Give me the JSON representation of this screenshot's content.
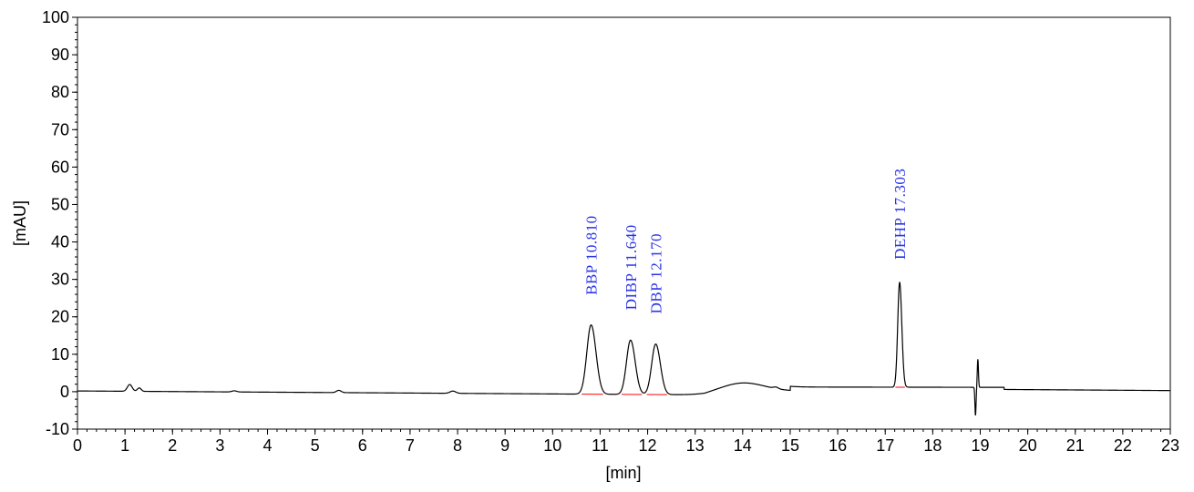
{
  "chart_data": {
    "type": "line",
    "xlabel": "[min]",
    "ylabel": "[mAU]",
    "xlim": [
      0,
      23
    ],
    "ylim": [
      -10,
      100
    ],
    "x_ticks": [
      0,
      1,
      2,
      3,
      4,
      5,
      6,
      7,
      8,
      9,
      10,
      11,
      12,
      13,
      14,
      15,
      16,
      17,
      18,
      19,
      20,
      21,
      22,
      23
    ],
    "y_ticks": [
      -10,
      0,
      10,
      20,
      30,
      40,
      50,
      60,
      70,
      80,
      90,
      100
    ],
    "grid": false,
    "legend": "none",
    "colors": {
      "trace": "#000000",
      "baseline": "#ff0000",
      "label": "#2b35e8",
      "axis": "#000000"
    },
    "peaks": [
      {
        "label": "BBP 10.810",
        "rt": 10.81,
        "height": 18.5,
        "width": 0.09
      },
      {
        "label": "DIBP 11.640",
        "rt": 11.64,
        "height": 14.5,
        "width": 0.085
      },
      {
        "label": "DBP 12.170",
        "rt": 12.17,
        "height": 13.5,
        "width": 0.085
      },
      {
        "label": "DEHP 17.303",
        "rt": 17.303,
        "height": 28.0,
        "width": 0.04
      }
    ],
    "minor_features": [
      {
        "x": 1.1,
        "height": 1.8,
        "width": 0.05
      },
      {
        "x": 1.3,
        "height": 0.9,
        "width": 0.04
      },
      {
        "x": 3.3,
        "height": 0.3,
        "width": 0.05
      },
      {
        "x": 5.5,
        "height": 0.6,
        "width": 0.05
      },
      {
        "x": 7.9,
        "height": 0.6,
        "width": 0.06
      },
      {
        "x": 14.0,
        "height": 2.3,
        "width": 0.45
      },
      {
        "x": 14.7,
        "height": 0.4,
        "width": 0.05
      }
    ],
    "disturbance": {
      "x": 18.93,
      "up": 7.5,
      "down": -7.5
    }
  }
}
